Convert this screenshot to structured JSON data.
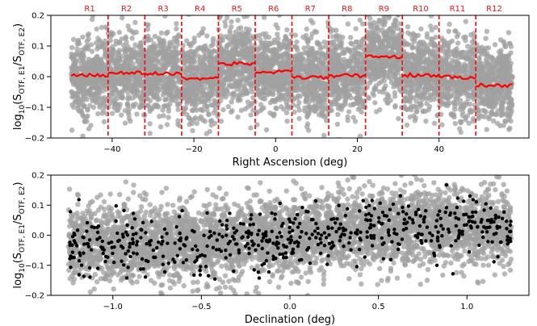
{
  "chart_data": [
    {
      "type": "scatter",
      "title": "",
      "xlabel": "Right Ascension (deg)",
      "ylabel": "log10(S_OTF,E1/S_OTF,E2)",
      "ylabel_parts": {
        "prefix": "log",
        "base": "10",
        "open": "(",
        "s1": "S",
        "sub1": "OTF, E1",
        "slash": "/",
        "s2": "S",
        "sub2": "OTF, E2",
        "close": ")"
      },
      "xlim": [
        -55,
        62
      ],
      "ylim": [
        -0.2,
        0.2
      ],
      "xticks": [
        -40,
        -20,
        0,
        20,
        40
      ],
      "yticks": [
        -0.2,
        -0.1,
        0.0,
        0.1,
        0.2
      ],
      "xtick_labels": [
        "−40",
        "−20",
        "0",
        "20",
        "40"
      ],
      "ytick_labels": [
        "−0.2",
        "−0.1",
        "0.0",
        "0.1",
        "0.2"
      ],
      "grid": false,
      "point_color": "#a0a0a0",
      "line_color": "#ff0000",
      "scatter_x_range": [
        -50,
        58
      ],
      "scatter_y_spread": 0.065,
      "region_boundaries": [
        -41,
        -32,
        -23,
        -14,
        -5,
        4,
        13,
        22,
        31,
        40,
        49
      ],
      "regions": [
        {
          "name": "R1",
          "x": [
            -50,
            -41
          ],
          "level": 0.005
        },
        {
          "name": "R2",
          "x": [
            -41,
            -32
          ],
          "level": 0.012
        },
        {
          "name": "R3",
          "x": [
            -32,
            -23
          ],
          "level": 0.01
        },
        {
          "name": "R4",
          "x": [
            -23,
            -14
          ],
          "level": -0.005
        },
        {
          "name": "R5",
          "x": [
            -14,
            -5
          ],
          "level": 0.042
        },
        {
          "name": "R6",
          "x": [
            -5,
            4
          ],
          "level": 0.015
        },
        {
          "name": "R7",
          "x": [
            4,
            13
          ],
          "level": -0.003
        },
        {
          "name": "R8",
          "x": [
            13,
            22
          ],
          "level": 0.003
        },
        {
          "name": "R9",
          "x": [
            22,
            31
          ],
          "level": 0.065
        },
        {
          "name": "R10",
          "x": [
            31,
            40
          ],
          "level": 0.005
        },
        {
          "name": "R11",
          "x": [
            40,
            49
          ],
          "level": -0.002
        },
        {
          "name": "R12",
          "x": [
            49,
            58
          ],
          "level": -0.028
        }
      ]
    },
    {
      "type": "scatter",
      "title": "",
      "xlabel": "Declination (deg)",
      "ylabel": "log10(S_OTF,E1/S_OTF,E2)",
      "ylabel_parts": {
        "prefix": "log",
        "base": "10",
        "open": "(",
        "s1": "S",
        "sub1": "OTF, E1",
        "slash": "/",
        "s2": "S",
        "sub2": "OTF, E2",
        "close": ")"
      },
      "xlim": [
        -1.35,
        1.35
      ],
      "ylim": [
        -0.2,
        0.2
      ],
      "xticks": [
        -1.0,
        -0.5,
        0.0,
        0.5,
        1.0
      ],
      "yticks": [
        -0.2,
        -0.1,
        0.0,
        0.1,
        0.2
      ],
      "xtick_labels": [
        "−1.0",
        "−0.5",
        "0.0",
        "0.5",
        "1.0"
      ],
      "ytick_labels": [
        "−0.2",
        "−0.1",
        "0.0",
        "0.1",
        "0.2"
      ],
      "grid": false,
      "background_color": "#a0a0a0",
      "highlight_color": "#000000",
      "scatter_x_range": [
        -1.25,
        1.25
      ]
    }
  ]
}
